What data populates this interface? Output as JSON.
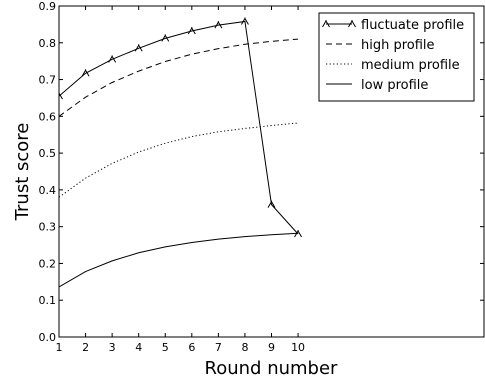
{
  "chart_data": {
    "type": "line",
    "title": "",
    "xlabel": "Round number",
    "ylabel": "Trust score",
    "xlim": [
      1,
      17
    ],
    "ylim": [
      0.0,
      0.9
    ],
    "xticks": [
      "1",
      "2",
      "3",
      "4",
      "5",
      "6",
      "7",
      "8",
      "9",
      "10"
    ],
    "yticks": [
      "0.0",
      "0.1",
      "0.2",
      "0.3",
      "0.4",
      "0.5",
      "0.6",
      "0.7",
      "0.8",
      "0.9"
    ],
    "grid": false,
    "legend_position": "top-right",
    "x": [
      1,
      2,
      3,
      4,
      5,
      6,
      7,
      8,
      9,
      10
    ],
    "series": [
      {
        "name": "fluctuate profile",
        "line_style": "solid-with-markers",
        "color": "#000000",
        "values": [
          0.655,
          0.717,
          0.755,
          0.785,
          0.812,
          0.832,
          0.848,
          0.858,
          0.36,
          0.28
        ]
      },
      {
        "name": "high profile",
        "line_style": "dashed",
        "color": "#000000",
        "values": [
          0.6,
          0.652,
          0.692,
          0.723,
          0.749,
          0.769,
          0.784,
          0.796,
          0.804,
          0.81
        ]
      },
      {
        "name": "medium profile",
        "line_style": "dotted",
        "color": "#000000",
        "values": [
          0.38,
          0.432,
          0.472,
          0.503,
          0.527,
          0.545,
          0.558,
          0.567,
          0.575,
          0.582
        ]
      },
      {
        "name": "low profile",
        "line_style": "solid",
        "color": "#000000",
        "values": [
          0.136,
          0.178,
          0.207,
          0.229,
          0.245,
          0.257,
          0.266,
          0.273,
          0.278,
          0.282
        ]
      }
    ]
  }
}
